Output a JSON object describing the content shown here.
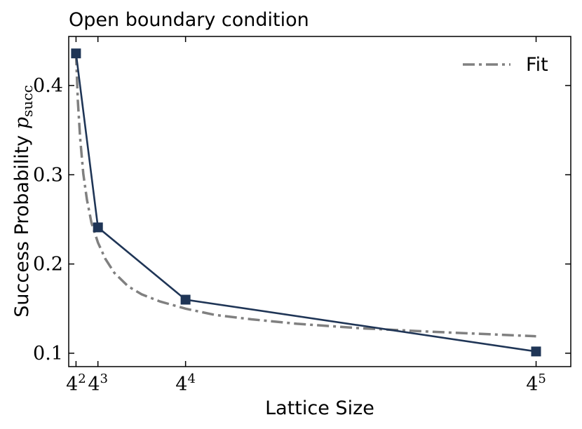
{
  "chart_data": {
    "type": "line",
    "title": "Open boundary condition",
    "xlabel": "Lattice Size",
    "ylabel": {
      "text": "Success Probability ",
      "math_var": "p",
      "math_sub": "succ"
    },
    "xscale": "linear",
    "xlim": [
      0,
      1100
    ],
    "ylim": [
      0.085,
      0.455
    ],
    "yticks": [
      {
        "value": 0.1,
        "label": "0.1"
      },
      {
        "value": 0.2,
        "label": "0.2"
      },
      {
        "value": 0.3,
        "label": "0.3"
      },
      {
        "value": 0.4,
        "label": "0.4"
      }
    ],
    "xticks": [
      {
        "value": 16,
        "base": "4",
        "exp": "2"
      },
      {
        "value": 64,
        "base": "4",
        "exp": "3"
      },
      {
        "value": 256,
        "base": "4",
        "exp": "4"
      },
      {
        "value": 1024,
        "base": "4",
        "exp": "5"
      }
    ],
    "series": [
      {
        "x": [
          16,
          64,
          256,
          1024
        ],
        "y": [
          0.436,
          0.241,
          0.16,
          0.102
        ],
        "marker": "square",
        "color": "#1f3556"
      }
    ],
    "fit": {
      "name": "Fit",
      "x": [
        16,
        20,
        25,
        32,
        40,
        50,
        64,
        80,
        100,
        130,
        160,
        200,
        256,
        320,
        400,
        500,
        640,
        800,
        1024
      ],
      "y": [
        0.436,
        0.383,
        0.341,
        0.301,
        0.272,
        0.246,
        0.224,
        0.206,
        0.19,
        0.175,
        0.166,
        0.158,
        0.15,
        0.143,
        0.138,
        0.133,
        0.128,
        0.124,
        0.119
      ],
      "color": "#808080",
      "linestyle": "dash-dot"
    },
    "legend_position": "top-right",
    "grid": false
  }
}
